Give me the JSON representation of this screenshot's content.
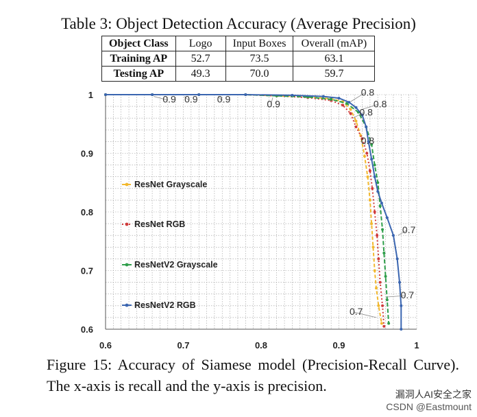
{
  "table": {
    "caption": "Table 3: Object Detection Accuracy (Average Precision)",
    "headers": [
      "Object Class",
      "Logo",
      "Input Boxes",
      "Overall (mAP)"
    ],
    "rows": [
      {
        "label": "Training AP",
        "logo": "52.7",
        "input_boxes": "73.5",
        "overall": "63.1"
      },
      {
        "label": "Testing AP",
        "logo": "49.3",
        "input_boxes": "70.0",
        "overall": "59.7"
      }
    ]
  },
  "chart_data": {
    "type": "line",
    "title": "",
    "xlabel": "",
    "ylabel": "",
    "xlim": [
      0.6,
      1.0
    ],
    "ylim": [
      0.6,
      1.0
    ],
    "x_ticks": [
      "0.6",
      "0.7",
      "0.8",
      "0.9",
      "1"
    ],
    "y_ticks": [
      "0.6",
      "0.7",
      "0.8",
      "0.9",
      "1"
    ],
    "grid": true,
    "legend_position": "left",
    "series": [
      {
        "name": "ResNet Grayscale",
        "color": "#f2b82e",
        "dash": "5,3",
        "points": [
          [
            0.6,
            1.0
          ],
          [
            0.66,
            1.0
          ],
          [
            0.72,
            1.0
          ],
          [
            0.78,
            1.0
          ],
          [
            0.82,
            0.998
          ],
          [
            0.86,
            0.996
          ],
          [
            0.89,
            0.993
          ],
          [
            0.905,
            0.988
          ],
          [
            0.915,
            0.975
          ],
          [
            0.922,
            0.955
          ],
          [
            0.928,
            0.93
          ],
          [
            0.933,
            0.895
          ],
          [
            0.937,
            0.86
          ],
          [
            0.94,
            0.82
          ],
          [
            0.942,
            0.78
          ],
          [
            0.944,
            0.74
          ],
          [
            0.946,
            0.7
          ],
          [
            0.948,
            0.67
          ],
          [
            0.951,
            0.64
          ],
          [
            0.955,
            0.61
          ]
        ]
      },
      {
        "name": "ResNet RGB",
        "color": "#d03a3a",
        "dash": "2,3",
        "points": [
          [
            0.6,
            1.0
          ],
          [
            0.66,
            1.0
          ],
          [
            0.72,
            1.0
          ],
          [
            0.78,
            1.0
          ],
          [
            0.82,
            0.998
          ],
          [
            0.86,
            0.995
          ],
          [
            0.89,
            0.99
          ],
          [
            0.905,
            0.982
          ],
          [
            0.915,
            0.968
          ],
          [
            0.922,
            0.945
          ],
          [
            0.93,
            0.925
          ],
          [
            0.936,
            0.9
          ],
          [
            0.94,
            0.87
          ],
          [
            0.943,
            0.84
          ],
          [
            0.946,
            0.8
          ],
          [
            0.949,
            0.76
          ],
          [
            0.951,
            0.72
          ],
          [
            0.953,
            0.68
          ],
          [
            0.956,
            0.64
          ],
          [
            0.958,
            0.605
          ]
        ]
      },
      {
        "name": "ResNetV2 Grayscale",
        "color": "#2e9e4a",
        "dash": "6,3",
        "points": [
          [
            0.6,
            1.0
          ],
          [
            0.66,
            1.0
          ],
          [
            0.72,
            1.0
          ],
          [
            0.78,
            1.0
          ],
          [
            0.82,
            0.998
          ],
          [
            0.86,
            0.996
          ],
          [
            0.89,
            0.992
          ],
          [
            0.91,
            0.985
          ],
          [
            0.925,
            0.97
          ],
          [
            0.935,
            0.945
          ],
          [
            0.942,
            0.915
          ],
          [
            0.946,
            0.88
          ],
          [
            0.95,
            0.85
          ],
          [
            0.953,
            0.81
          ],
          [
            0.956,
            0.77
          ],
          [
            0.958,
            0.73
          ],
          [
            0.96,
            0.69
          ],
          [
            0.962,
            0.65
          ],
          [
            0.964,
            0.61
          ]
        ]
      },
      {
        "name": "ResNetV2 RGB",
        "color": "#3a65b0",
        "dash": "",
        "points": [
          [
            0.6,
            1.0
          ],
          [
            0.66,
            1.0
          ],
          [
            0.72,
            1.0
          ],
          [
            0.78,
            1.0
          ],
          [
            0.84,
            0.999
          ],
          [
            0.88,
            0.997
          ],
          [
            0.9,
            0.994
          ],
          [
            0.913,
            0.987
          ],
          [
            0.922,
            0.978
          ],
          [
            0.93,
            0.965
          ],
          [
            0.935,
            0.945
          ],
          [
            0.938,
            0.92
          ],
          [
            0.942,
            0.89
          ],
          [
            0.946,
            0.86
          ],
          [
            0.95,
            0.835
          ],
          [
            0.955,
            0.815
          ],
          [
            0.962,
            0.79
          ],
          [
            0.97,
            0.76
          ],
          [
            0.975,
            0.72
          ],
          [
            0.978,
            0.68
          ],
          [
            0.98,
            0.64
          ],
          [
            0.98,
            0.6
          ]
        ]
      }
    ],
    "annotations": [
      {
        "text": "0.9",
        "x": 0.662,
        "y": 0.997,
        "px": 0.682,
        "py": 0.9865
      },
      {
        "text": "0.9",
        "x": 0.701,
        "y": 0.997,
        "px": 0.71,
        "py": 0.9865
      },
      {
        "text": "0.9",
        "x": 0.745,
        "y": 0.997,
        "px": 0.752,
        "py": 0.9865
      },
      {
        "text": "0.9",
        "x": 0.815,
        "y": 0.995,
        "px": 0.816,
        "py": 0.9785
      },
      {
        "text": "0.8",
        "x": 0.915,
        "y": 0.988,
        "px": 0.937,
        "py": 0.9985
      },
      {
        "text": "0.8",
        "x": 0.93,
        "y": 0.975,
        "px": 0.953,
        "py": 0.9785
      },
      {
        "text": "0.8",
        "x": 0.918,
        "y": 0.96,
        "px": 0.935,
        "py": 0.9645
      },
      {
        "text": "0.8",
        "x": 0.934,
        "y": 0.915,
        "px": 0.937,
        "py": 0.9155
      },
      {
        "text": "0.7",
        "x": 0.976,
        "y": 0.76,
        "px": 0.99,
        "py": 0.7635
      },
      {
        "text": "0.7",
        "x": 0.962,
        "y": 0.655,
        "px": 0.988,
        "py": 0.6525
      },
      {
        "text": "0.7",
        "x": 0.948,
        "y": 0.62,
        "px": 0.9222,
        "py": 0.6245
      }
    ]
  },
  "figure_caption": "Figure 15: Accuracy of Siamese model (Precision-Recall Curve). The x-axis is recall and the y-axis is precision.",
  "watermark": {
    "line1": "漏洞人AI安全之家",
    "line2": "CSDN @Eastmount"
  }
}
